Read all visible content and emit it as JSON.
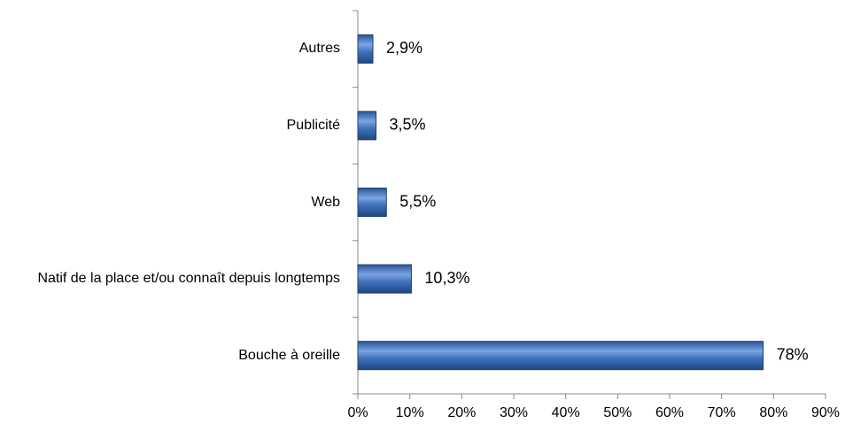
{
  "chart_data": {
    "type": "barh",
    "categories": [
      "Autres",
      "Publicité",
      "Web",
      "Natif de la place et/ou connaît depuis longtemps",
      "Bouche à oreille"
    ],
    "values": [
      2.9,
      3.5,
      5.5,
      10.3,
      78
    ],
    "value_labels": [
      "2,9%",
      "3,5%",
      "5,5%",
      "10,3%",
      "78%"
    ],
    "color": "#3c6fb8",
    "xlim": [
      0,
      90
    ],
    "xticks": [
      {
        "value": 0,
        "label": "0%"
      },
      {
        "value": 10,
        "label": "10%"
      },
      {
        "value": 20,
        "label": "20%"
      },
      {
        "value": 30,
        "label": "30%"
      },
      {
        "value": 40,
        "label": "40%"
      },
      {
        "value": 50,
        "label": "50%"
      },
      {
        "value": 60,
        "label": "60%"
      },
      {
        "value": 70,
        "label": "70%"
      },
      {
        "value": 80,
        "label": "80%"
      },
      {
        "value": 90,
        "label": "90%"
      }
    ],
    "grid": false
  }
}
